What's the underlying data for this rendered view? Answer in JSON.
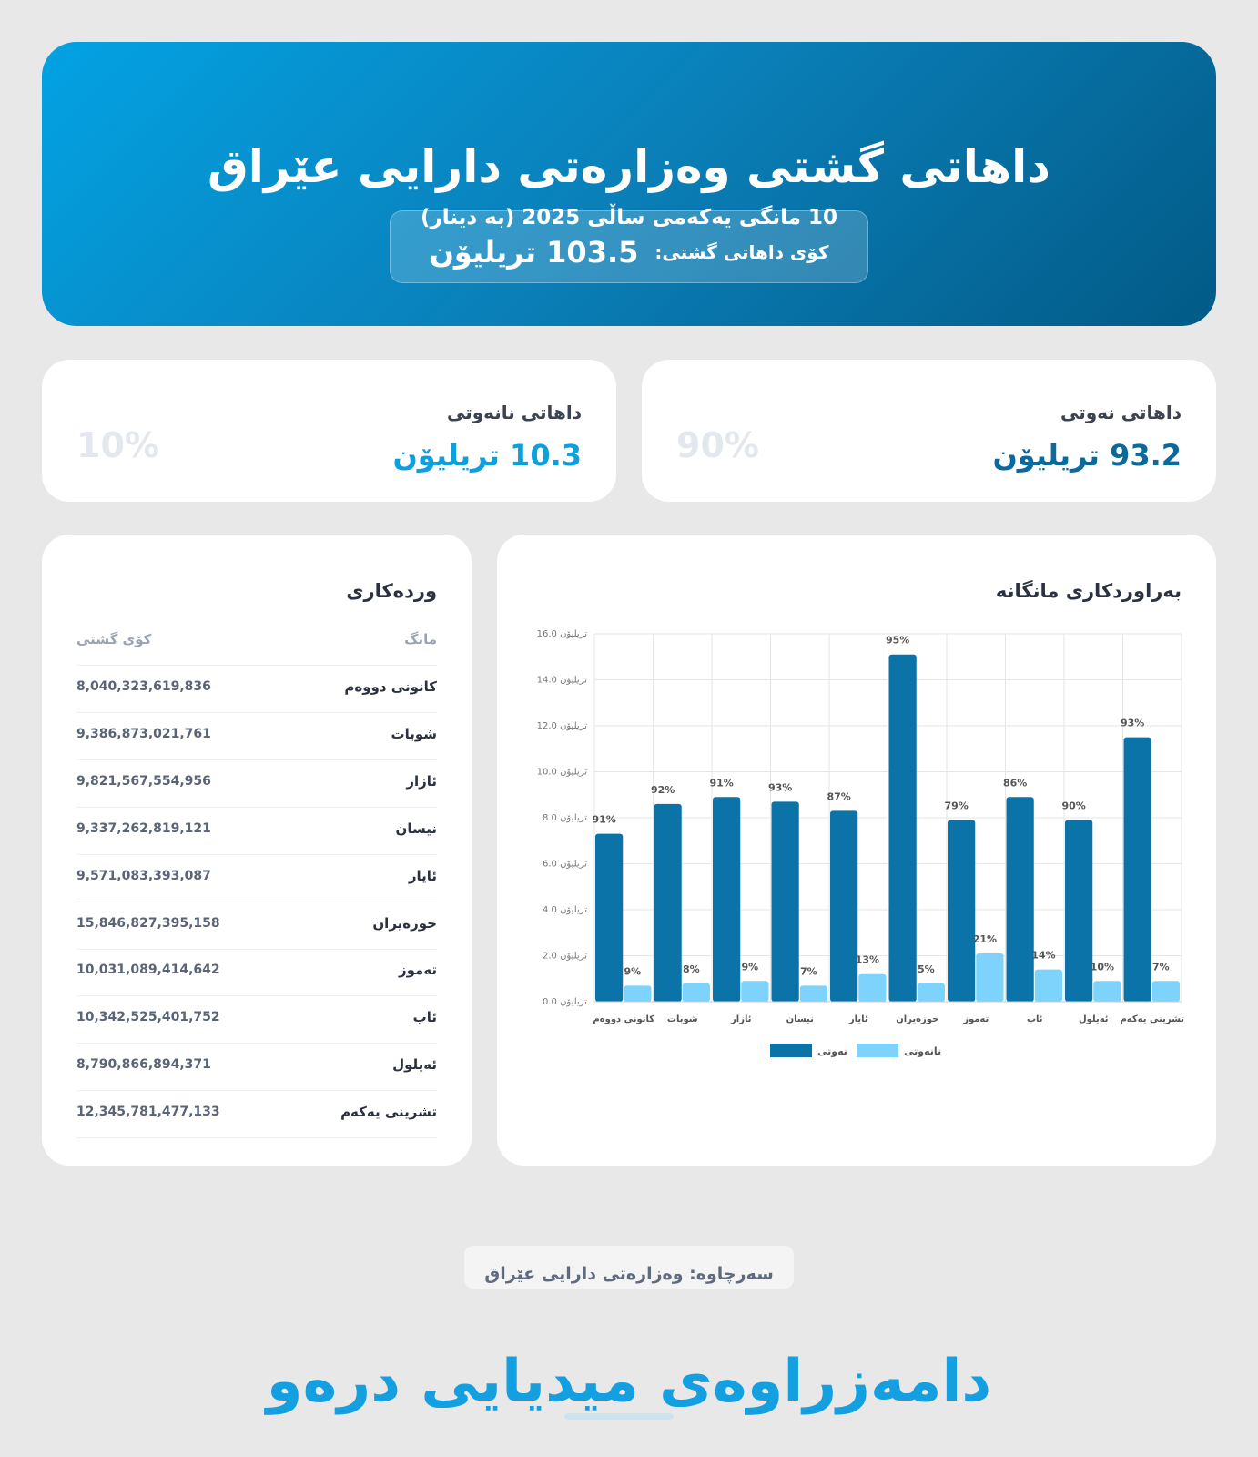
{
  "header": {
    "title": "داهاتی گشتی وەزارەتی دارایی عێراق",
    "subtitle": "10 مانگی یەکەمی ساڵی 2025 (بە دینار)",
    "total_label": "کۆی داهاتی گشتی:",
    "total_value": "103.5 تریلیۆن"
  },
  "cards": [
    {
      "label": "داهاتی نەوتی",
      "value": "93.2 تریلیۆن",
      "percent": "90%"
    },
    {
      "label": "داهاتی نانەوتی",
      "value": "10.3 تریلیۆن",
      "percent": "10%"
    }
  ],
  "table": {
    "title": "وردەکاری",
    "headers": [
      "مانگ",
      "کۆی گشتی"
    ],
    "rows": [
      [
        "کانونی دووەم",
        "8,040,323,619,836"
      ],
      [
        "شوبات",
        "9,386,873,021,761"
      ],
      [
        "ئازار",
        "9,821,567,554,956"
      ],
      [
        "نیسان",
        "9,337,262,819,121"
      ],
      [
        "ئایار",
        "9,571,083,393,087"
      ],
      [
        "حوزەیران",
        "15,846,827,395,158"
      ],
      [
        "تەموز",
        "10,031,089,414,642"
      ],
      [
        "ئاب",
        "10,342,525,401,752"
      ],
      [
        "ئەیلول",
        "8,790,866,894,371"
      ],
      [
        "تشرینی یەکەم",
        "12,345,781,477,133"
      ]
    ]
  },
  "chart_data": {
    "type": "bar",
    "title": "بەراوردکاری مانگانە",
    "categories": [
      "کانونی دووەم",
      "شوبات",
      "ئازار",
      "نیسان",
      "ئایار",
      "حوزەیران",
      "تەموز",
      "ئاب",
      "ئەیلول",
      "تشرینی یەکەم"
    ],
    "series": [
      {
        "name": "نەوتی",
        "color": "#0b73a8",
        "values": [
          7.3,
          8.6,
          8.9,
          8.7,
          8.3,
          15.1,
          7.9,
          8.9,
          7.9,
          11.5
        ],
        "point_labels": [
          "91%",
          "92%",
          "91%",
          "93%",
          "87%",
          "95%",
          "79%",
          "86%",
          "90%",
          "93%"
        ]
      },
      {
        "name": "نانەوتی",
        "color": "#7dd3fc",
        "values": [
          0.7,
          0.8,
          0.9,
          0.7,
          1.2,
          0.8,
          2.1,
          1.4,
          0.9,
          0.9
        ],
        "point_labels": [
          "9%",
          "8%",
          "9%",
          "7%",
          "13%",
          "5%",
          "21%",
          "14%",
          "10%",
          "7%"
        ]
      }
    ],
    "ylim": [
      0,
      16
    ],
    "yticks": [
      {
        "value": 0,
        "label": "0.0 تریلیۆن"
      },
      {
        "value": 2,
        "label": "2.0 تریلیۆن"
      },
      {
        "value": 4,
        "label": "4.0 تریلیۆن"
      },
      {
        "value": 6,
        "label": "6.0 تریلیۆن"
      },
      {
        "value": 8,
        "label": "8.0 تریلیۆن"
      },
      {
        "value": 10,
        "label": "10.0 تریلیۆن"
      },
      {
        "value": 12,
        "label": "12.0 تریلیۆن"
      },
      {
        "value": 14,
        "label": "14.0 تریلیۆن"
      },
      {
        "value": 16,
        "label": "16.0 تریلیۆن"
      }
    ],
    "grid": true,
    "legend": "bottom"
  },
  "source": "سەرچاوە: وەزارەتی دارایی عێراق",
  "brand": "دامەزراوەی میدیایی درەو"
}
